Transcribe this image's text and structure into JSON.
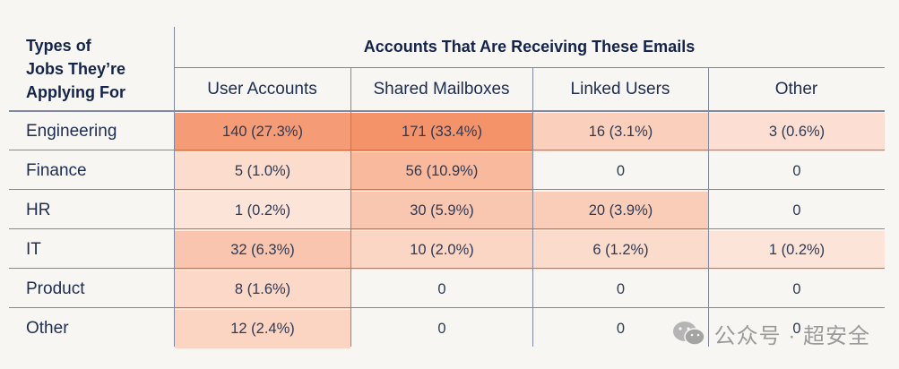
{
  "chart_data": {
    "type": "table",
    "row_header": "Types of\nJobs They’re\nApplying For",
    "column_group_title": "Accounts That Are Receiving These Emails",
    "columns": [
      "User Accounts",
      "Shared Mailboxes",
      "Linked Users",
      "Other"
    ],
    "rows": [
      {
        "label": "Engineering",
        "cells": [
          "140 (27.3%)",
          "171 (33.4%)",
          "16 (3.1%)",
          "3 (0.6%)"
        ],
        "values": [
          140,
          171,
          16,
          3
        ]
      },
      {
        "label": "Finance",
        "cells": [
          "5 (1.0%)",
          "56 (10.9%)",
          "0",
          "0"
        ],
        "values": [
          5,
          56,
          0,
          0
        ]
      },
      {
        "label": "HR",
        "cells": [
          "1 (0.2%)",
          "30 (5.9%)",
          "20 (3.9%)",
          "0"
        ],
        "values": [
          1,
          30,
          20,
          0
        ]
      },
      {
        "label": "IT",
        "cells": [
          "32 (6.3%)",
          "10 (2.0%)",
          "6 (1.2%)",
          "1 (0.2%)"
        ],
        "values": [
          32,
          10,
          6,
          1
        ]
      },
      {
        "label": "Product",
        "cells": [
          "8 (1.6%)",
          "0",
          "0",
          "0"
        ],
        "values": [
          8,
          0,
          0,
          0
        ]
      },
      {
        "label": "Other",
        "cells": [
          "12 (2.4%)",
          "0",
          "0",
          "0"
        ],
        "values": [
          12,
          0,
          0,
          0
        ]
      }
    ],
    "heat_colors": {
      "low": "#fdebe2",
      "high": "#f4936a",
      "none": "transparent"
    }
  },
  "watermark": {
    "text": "公众号 · 超安全",
    "icon": "wechat-icon"
  }
}
